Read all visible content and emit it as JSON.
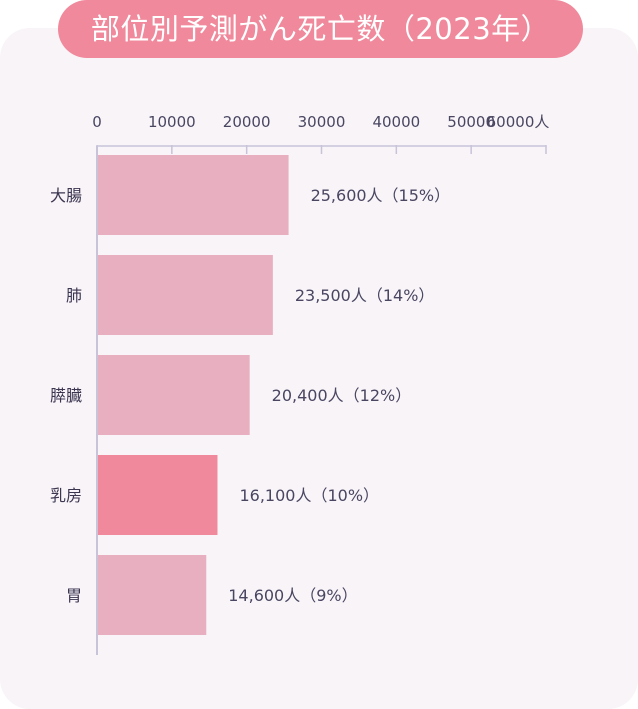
{
  "title": "部位別予測がん死亡数（2023年）",
  "chart_data": {
    "type": "bar",
    "orientation": "horizontal",
    "xlim": [
      0,
      60000
    ],
    "ticks": [
      0,
      10000,
      20000,
      30000,
      40000,
      50000,
      60000
    ],
    "tick_labels": [
      "0",
      "10000",
      "20000",
      "30000",
      "40000",
      "50000",
      "60000人"
    ],
    "categories": [
      "大腸",
      "肺",
      "膵臓",
      "乳房",
      "胃"
    ],
    "values": [
      25600,
      23500,
      20400,
      16100,
      14600
    ],
    "data_labels": [
      "25,600人（15%）",
      "23,500人（14%）",
      "20,400人（12%）",
      "16,100人（10%）",
      "14,600人（9%）"
    ],
    "highlight_index": 3,
    "colors": {
      "bar": "#e8afc0",
      "highlight": "#f0899b",
      "axis": "#c9c3d9",
      "title_bg": "#f0899b",
      "panel_bg": "#f8f4f8"
    }
  }
}
